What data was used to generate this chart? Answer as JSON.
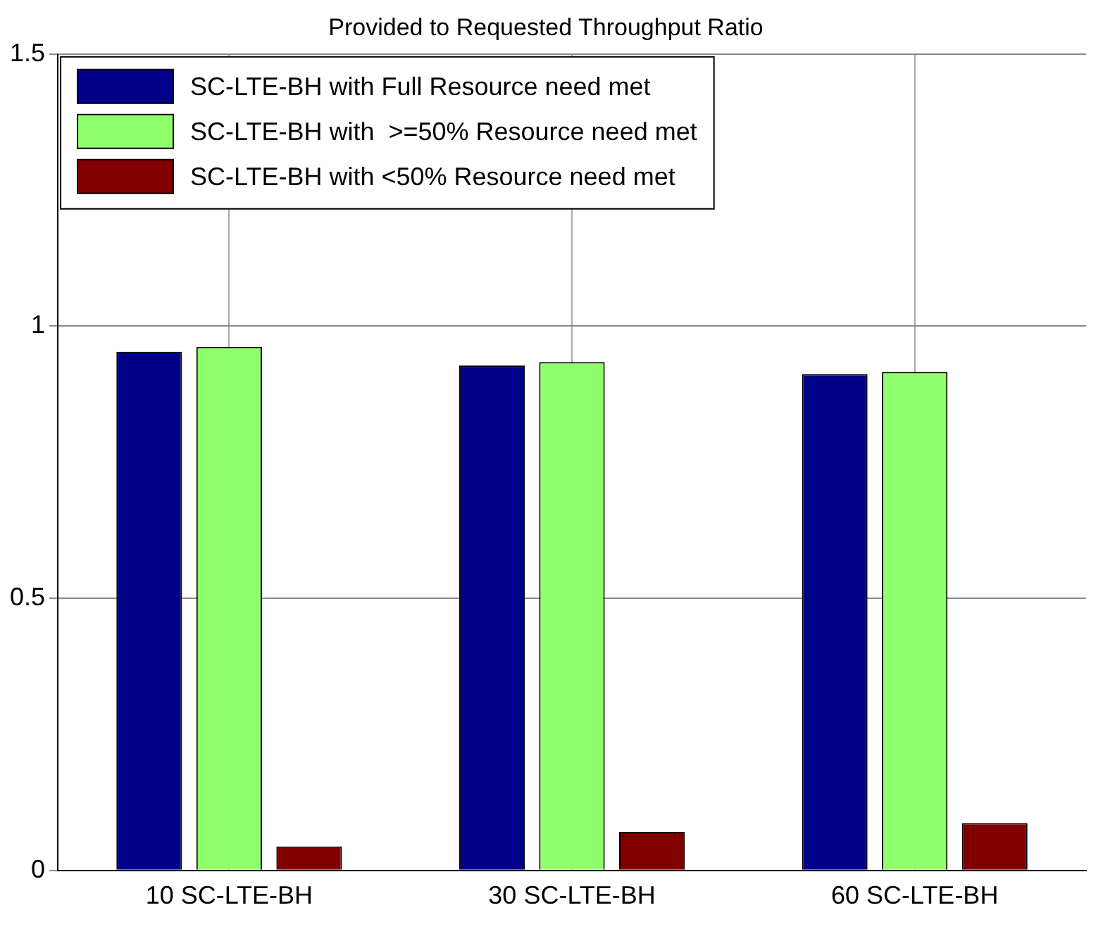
{
  "chart_data": {
    "type": "bar",
    "title": "Provided to Requested Throughput Ratio",
    "categories": [
      "10 SC-LTE-BH",
      "30 SC-LTE-BH",
      "60 SC-LTE-BH"
    ],
    "series": [
      {
        "name": "SC-LTE-BH with Full Resource need met",
        "color": "#00008b",
        "values": [
          0.953,
          0.928,
          0.912
        ]
      },
      {
        "name": "SC-LTE-BH with  >=50% Resource need met",
        "color": "#90ff6c",
        "values": [
          0.962,
          0.934,
          0.916
        ]
      },
      {
        "name": "SC-LTE-BH with <50% Resource need met",
        "color": "#800000",
        "values": [
          0.044,
          0.071,
          0.087
        ]
      }
    ],
    "ylim": [
      0,
      1.5
    ],
    "yticks": [
      0,
      0.5,
      1,
      1.5
    ],
    "grid": true,
    "legend": "top left"
  }
}
